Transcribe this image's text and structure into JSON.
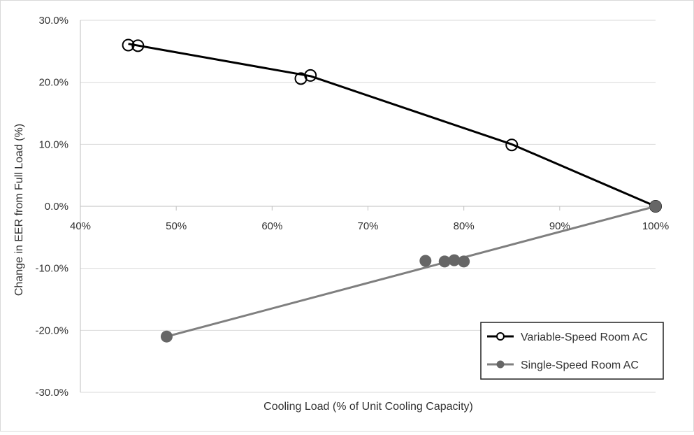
{
  "chart_data": {
    "type": "scatter",
    "title": "",
    "xlabel": "Cooling Load (% of Unit Cooling Capacity)",
    "ylabel": "Change in EER from Full Load (%)",
    "xlim": [
      40,
      100
    ],
    "ylim": [
      -30,
      30
    ],
    "x_ticks": [
      40,
      50,
      60,
      70,
      80,
      90,
      100
    ],
    "x_tick_labels": [
      "40%",
      "50%",
      "60%",
      "70%",
      "80%",
      "90%",
      "100%"
    ],
    "y_ticks": [
      30,
      20,
      10,
      0,
      -10,
      -20,
      -30
    ],
    "y_tick_labels": [
      "30.0%",
      "20.0%",
      "10.0%",
      "0.0%",
      "-10.0%",
      "-20.0%",
      "-30.0%"
    ],
    "grid": "horizontal",
    "legend_position": "bottom-right",
    "series": [
      {
        "name": "Variable-Speed Room AC",
        "marker": "open-circle",
        "color": "#000000",
        "points": [
          [
            45,
            26.0
          ],
          [
            46,
            25.9
          ],
          [
            63,
            20.6
          ],
          [
            64,
            21.1
          ],
          [
            85,
            9.9
          ],
          [
            100,
            0.0
          ]
        ],
        "line": [
          [
            45,
            26.2
          ],
          [
            64,
            21.0
          ],
          [
            85,
            10.0
          ],
          [
            100,
            0.0
          ]
        ]
      },
      {
        "name": "Single-Speed Room AC",
        "marker": "filled-circle",
        "color": "#7f7f7f",
        "points": [
          [
            49,
            -21.0
          ],
          [
            76,
            -8.8
          ],
          [
            78,
            -8.9
          ],
          [
            79,
            -8.7
          ],
          [
            80,
            -8.9
          ],
          [
            100,
            0.0
          ]
        ],
        "line": [
          [
            49,
            -21.0
          ],
          [
            100,
            0.0
          ]
        ]
      }
    ]
  }
}
